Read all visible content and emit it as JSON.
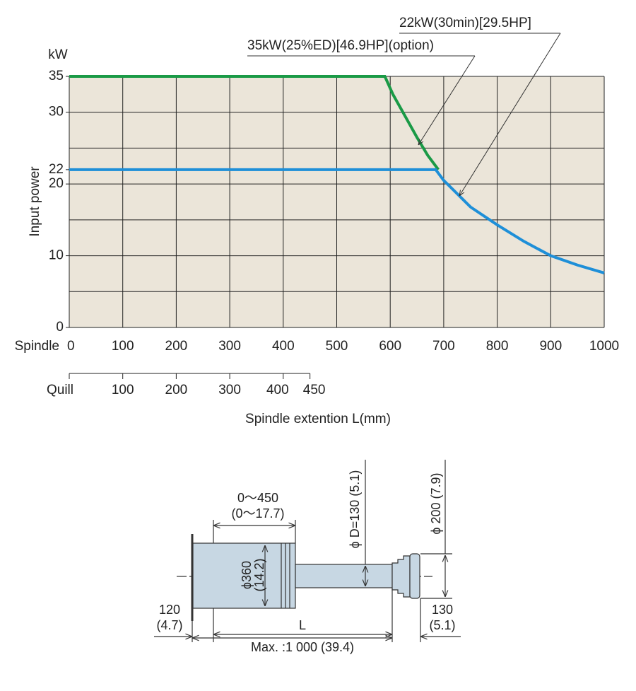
{
  "chart_data": {
    "type": "line",
    "y_unit": "kW",
    "y_label": "Input power",
    "x_axis_name": "Spindle",
    "x2_axis_name": "Quill",
    "x_label": "Spindle extention L(mm)",
    "xlim": [
      0,
      1000
    ],
    "xticks": [
      0,
      100,
      200,
      300,
      400,
      500,
      600,
      700,
      800,
      900,
      1000
    ],
    "x2lim": [
      0,
      450
    ],
    "x2ticks": [
      100,
      200,
      300,
      400,
      450
    ],
    "ylim": [
      0,
      35
    ],
    "yticks": [
      0,
      10,
      20,
      22,
      30,
      35
    ],
    "ygrid": [
      0,
      5,
      10,
      15,
      20,
      25,
      30,
      35
    ],
    "grid": true,
    "series": [
      {
        "name": "35kW(25%ED)[46.9HP](option)",
        "color": "#1a9a46",
        "x": [
          0,
          590,
          605,
          620,
          635,
          650,
          670,
          690
        ],
        "values": [
          35,
          35,
          32.5,
          30.5,
          28.5,
          26.5,
          24,
          22
        ]
      },
      {
        "name": "22kW(30min)[29.5HP]",
        "color": "#1e8fd8",
        "x": [
          0,
          685,
          700,
          750,
          800,
          850,
          900,
          950,
          1000
        ],
        "values": [
          22,
          22,
          20.5,
          16.8,
          14.3,
          12,
          10,
          8.7,
          7.6
        ]
      }
    ]
  },
  "diagram": {
    "stroke_range": [
      "0～450",
      "(0～17.7)"
    ],
    "body_diameter": [
      "ϕ360",
      "(14.2)"
    ],
    "spindle_diameter": "ϕ D=130 (5.1)",
    "face_diameter": "ϕ 200 (7.9)",
    "rear": [
      "120",
      "(4.7)"
    ],
    "extension": "L",
    "max": "Max. :1 000 (39.4)",
    "front": [
      "130",
      "(5.1)"
    ]
  }
}
